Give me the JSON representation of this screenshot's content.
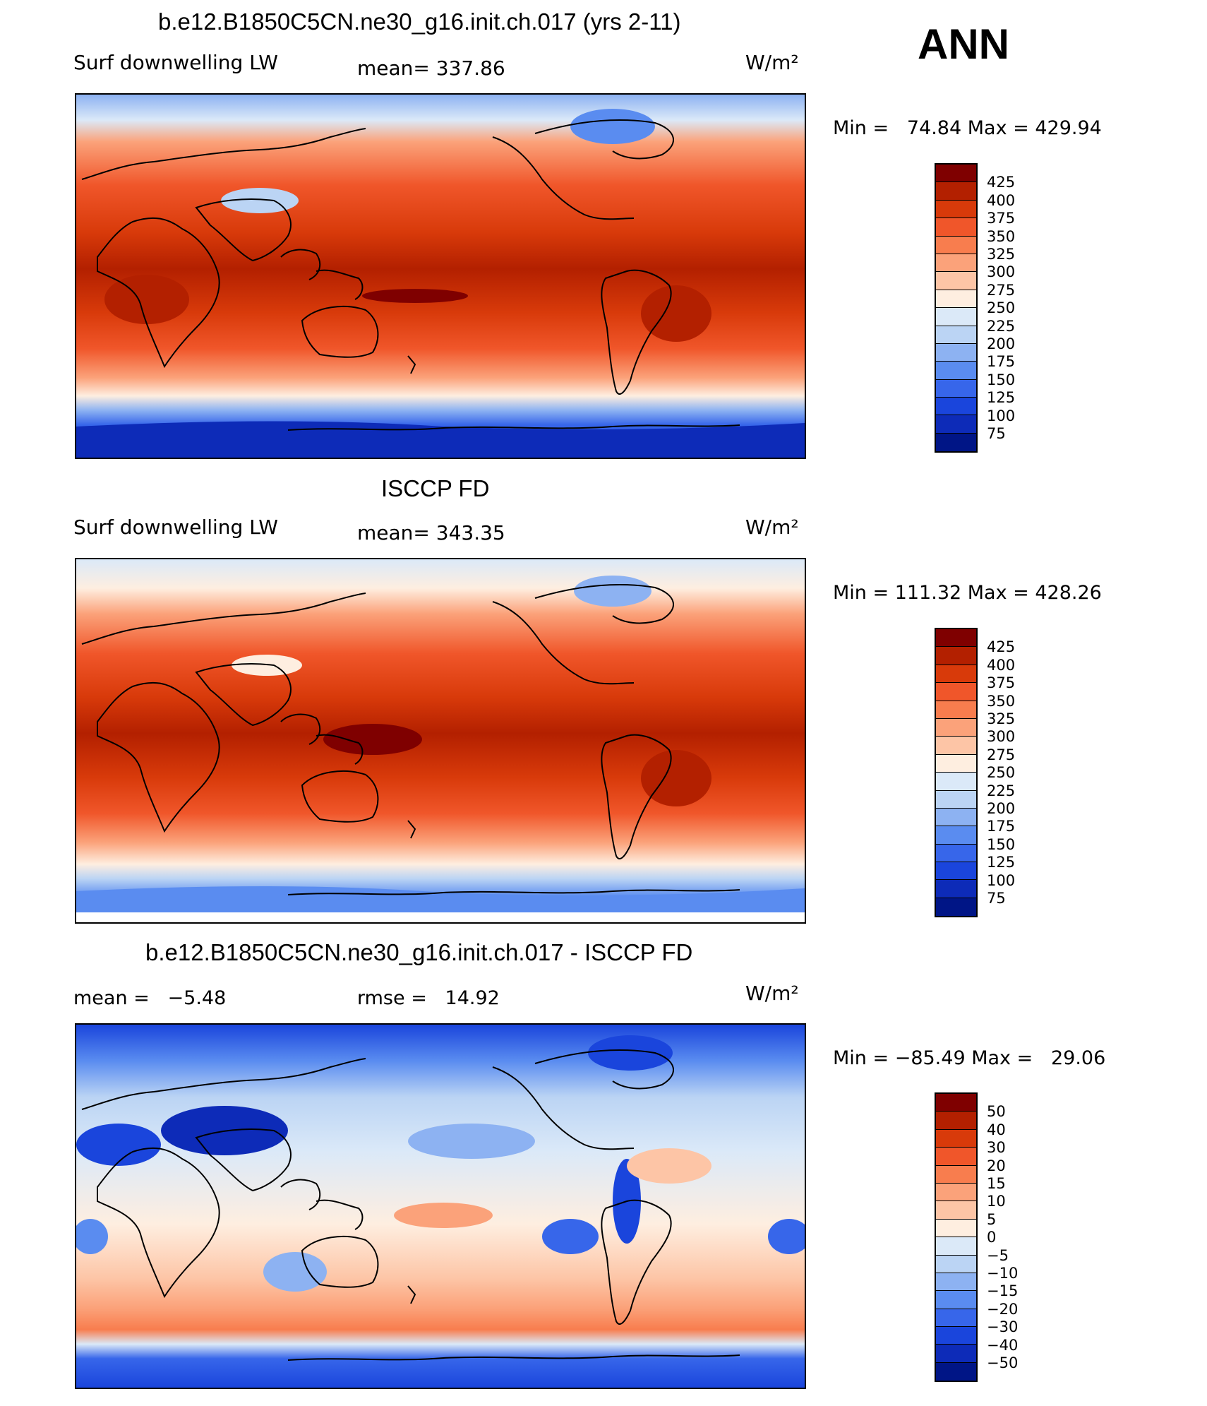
{
  "season": "ANN",
  "panels": [
    {
      "title": "b.e12.B1850C5CN.ne30_g16.init.ch.017 (yrs 2-11)",
      "left_label": "Surf downwelling LW",
      "center_label": "mean=  337.86",
      "units": "W/m²",
      "minmax": "Min =   74.84 Max = 429.94",
      "map_type": "absolute"
    },
    {
      "title": "ISCCP FD",
      "left_label": "Surf downwelling LW",
      "center_label": "mean=  343.35",
      "units": "W/m²",
      "minmax": "Min = 111.32 Max = 428.26",
      "map_type": "absolute"
    },
    {
      "title": "b.e12.B1850C5CN.ne30_g16.init.ch.017 - ISCCP FD",
      "left_label": "mean =   −5.48",
      "center_label": "rmse =   14.92",
      "units": "W/m²",
      "minmax": "Min = −85.49 Max =   29.06",
      "map_type": "difference"
    }
  ],
  "colorbars": {
    "absolute": {
      "labels": [
        "425",
        "400",
        "375",
        "350",
        "325",
        "300",
        "275",
        "250",
        "225",
        "200",
        "175",
        "150",
        "125",
        "100",
        "75"
      ],
      "colors": [
        "#7f0000",
        "#b32000",
        "#d83a0a",
        "#f0562a",
        "#f87d4e",
        "#fba27a",
        "#fdc5a6",
        "#feeee0",
        "#dbe9f8",
        "#bbd4f4",
        "#8db2f2",
        "#5a8cf0",
        "#3766ea",
        "#1a45dc",
        "#0d2bb8",
        "#001586"
      ]
    },
    "difference": {
      "labels": [
        "50",
        "40",
        "30",
        "20",
        "15",
        "10",
        "5",
        "0",
        "−5",
        "−10",
        "−15",
        "−20",
        "−30",
        "−40",
        "−50"
      ],
      "colors": [
        "#7f0000",
        "#b32000",
        "#d83a0a",
        "#f0562a",
        "#f87d4e",
        "#fba27a",
        "#fdc5a6",
        "#feeee0",
        "#dbe9f8",
        "#bbd4f4",
        "#8db2f2",
        "#5a8cf0",
        "#3766ea",
        "#1a45dc",
        "#0d2bb8",
        "#001586"
      ]
    }
  }
}
